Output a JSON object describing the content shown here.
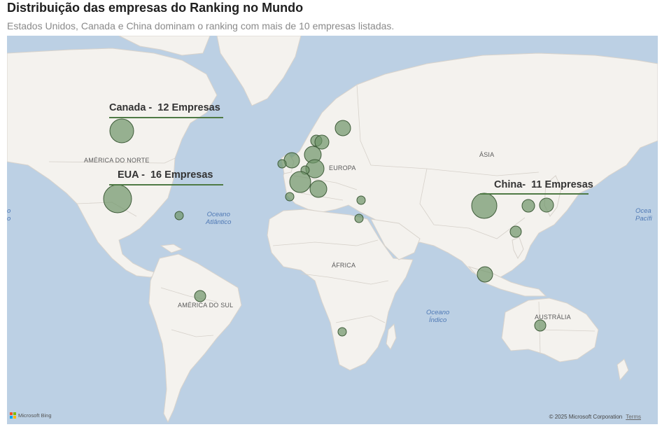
{
  "header": {
    "title": "Distribuição das empresas do Ranking no Mundo",
    "subtitle": "Estados Unidos, Canada e China dominam o ranking com mais de 10 empresas listadas."
  },
  "map": {
    "regions": [
      {
        "key": "north_america",
        "label": "AMÉRICA DO NORTE"
      },
      {
        "key": "south_america",
        "label": "AMÉRICA DO SUL"
      },
      {
        "key": "europe",
        "label": "EUROPA"
      },
      {
        "key": "africa",
        "label": "ÁFRICA"
      },
      {
        "key": "asia",
        "label": "ÁSIA"
      },
      {
        "key": "australia",
        "label": "AUSTRÁLIA"
      }
    ],
    "oceans": {
      "atlantic": {
        "line1": "Oceano",
        "line2": "Atlântico"
      },
      "indian": {
        "line1": "Oceano",
        "line2": "Índico"
      },
      "pacific_left": {
        "line1": "o",
        "line2": "o"
      },
      "pacific_right": {
        "line1": "Ocea",
        "line2": "Pacífi"
      }
    },
    "callouts": {
      "canada": "Canada -  12 Empresas",
      "usa": "EUA -  16 Empresas",
      "china": "China-  11 Empresas"
    },
    "bubble_color": "#6e9468",
    "bubble_stroke": "#3f5c3a"
  },
  "footer": {
    "bing_label": "Microsoft Bing",
    "copyright": "© 2025 Microsoft Corporation",
    "terms": "Terms"
  }
}
